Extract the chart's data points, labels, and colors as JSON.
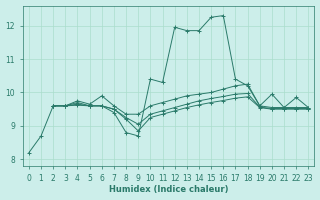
{
  "xlabel": "Humidex (Indice chaleur)",
  "ylabel": "",
  "bg_color": "#cceeea",
  "grid_color": "#aaddcc",
  "line_color": "#2a7a6a",
  "xlim": [
    -0.5,
    23.5
  ],
  "ylim": [
    7.8,
    12.6
  ],
  "xticks": [
    0,
    1,
    2,
    3,
    4,
    5,
    6,
    7,
    8,
    9,
    10,
    11,
    12,
    13,
    14,
    15,
    16,
    17,
    18,
    19,
    20,
    21,
    22,
    23
  ],
  "yticks": [
    8,
    9,
    10,
    11,
    12
  ],
  "lines": [
    {
      "x": [
        0,
        1,
        2,
        3,
        4,
        5,
        6,
        7,
        8,
        9,
        10,
        11,
        12,
        13,
        14,
        15,
        16,
        17,
        18,
        19,
        20,
        21,
        22,
        23
      ],
      "y": [
        8.2,
        8.7,
        9.6,
        9.6,
        9.7,
        9.6,
        9.6,
        9.4,
        8.8,
        8.7,
        10.4,
        10.3,
        11.95,
        11.85,
        11.85,
        12.25,
        12.3,
        10.4,
        10.2,
        9.6,
        9.95,
        9.55,
        9.85,
        9.55
      ]
    },
    {
      "x": [
        2,
        3,
        4,
        5,
        6,
        7,
        8,
        9,
        10,
        11,
        12,
        13,
        14,
        15,
        16,
        17,
        18,
        19,
        20,
        21,
        22,
        23
      ],
      "y": [
        9.6,
        9.6,
        9.75,
        9.65,
        9.9,
        9.6,
        9.35,
        9.35,
        9.6,
        9.7,
        9.8,
        9.9,
        9.95,
        10.0,
        10.1,
        10.2,
        10.25,
        9.6,
        9.55,
        9.55,
        9.55,
        9.55
      ]
    },
    {
      "x": [
        2,
        3,
        4,
        5,
        6,
        7,
        8,
        9,
        10,
        11,
        12,
        13,
        14,
        15,
        16,
        17,
        18,
        19,
        20,
        21,
        22,
        23
      ],
      "y": [
        9.6,
        9.6,
        9.65,
        9.6,
        9.6,
        9.5,
        9.25,
        9.05,
        9.35,
        9.45,
        9.55,
        9.65,
        9.75,
        9.82,
        9.88,
        9.95,
        9.97,
        9.56,
        9.52,
        9.52,
        9.52,
        9.52
      ]
    },
    {
      "x": [
        2,
        3,
        4,
        5,
        6,
        7,
        8,
        9,
        10,
        11,
        12,
        13,
        14,
        15,
        16,
        17,
        18,
        19,
        20,
        21,
        22,
        23
      ],
      "y": [
        9.6,
        9.6,
        9.62,
        9.6,
        9.6,
        9.5,
        9.2,
        8.85,
        9.25,
        9.35,
        9.45,
        9.55,
        9.63,
        9.7,
        9.76,
        9.83,
        9.87,
        9.55,
        9.5,
        9.5,
        9.5,
        9.5
      ]
    }
  ]
}
